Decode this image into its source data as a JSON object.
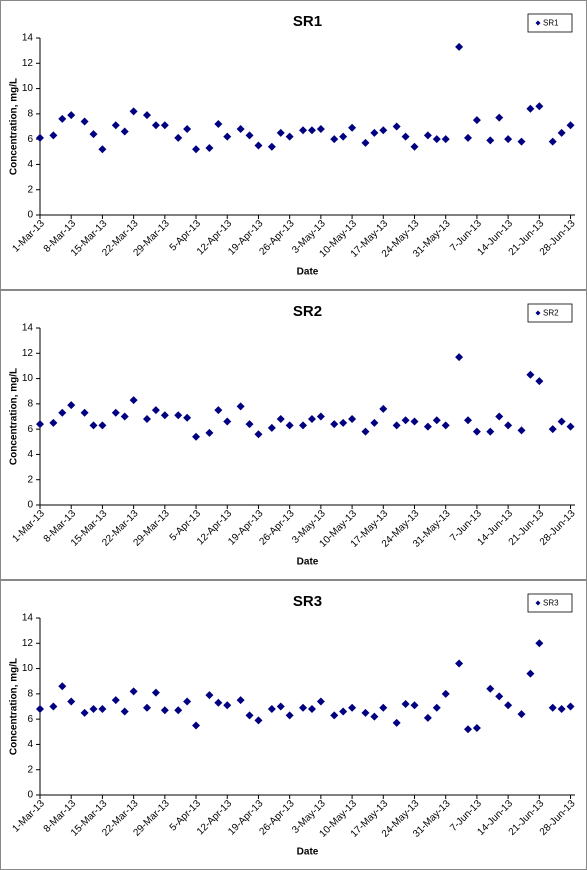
{
  "chart_data": [
    {
      "type": "scatter",
      "title": "SR1",
      "x_label": "Date",
      "y_label": "Concentration, mg/L",
      "legend": "upper right",
      "x": [
        "2013-03-01",
        "2013-03-04",
        "2013-03-06",
        "2013-03-08",
        "2013-03-11",
        "2013-03-13",
        "2013-03-15",
        "2013-03-18",
        "2013-03-20",
        "2013-03-22",
        "2013-03-25",
        "2013-03-27",
        "2013-03-29",
        "2013-04-01",
        "2013-04-03",
        "2013-04-05",
        "2013-04-08",
        "2013-04-10",
        "2013-04-12",
        "2013-04-15",
        "2013-04-17",
        "2013-04-19",
        "2013-04-22",
        "2013-04-24",
        "2013-04-26",
        "2013-04-29",
        "2013-05-01",
        "2013-05-03",
        "2013-05-06",
        "2013-05-08",
        "2013-05-10",
        "2013-05-13",
        "2013-05-15",
        "2013-05-17",
        "2013-05-20",
        "2013-05-22",
        "2013-05-24",
        "2013-05-27",
        "2013-05-29",
        "2013-05-31",
        "2013-06-03",
        "2013-06-05",
        "2013-06-07",
        "2013-06-10",
        "2013-06-12",
        "2013-06-14",
        "2013-06-17",
        "2013-06-19",
        "2013-06-21",
        "2013-06-24",
        "2013-06-26",
        "2013-06-28"
      ],
      "series": [
        {
          "name": "SR1",
          "color": "#000080",
          "values": [
            6.1,
            6.3,
            7.6,
            7.9,
            7.4,
            6.4,
            5.2,
            7.1,
            6.6,
            8.2,
            7.9,
            7.1,
            7.1,
            6.1,
            6.8,
            5.2,
            5.3,
            7.2,
            6.2,
            6.8,
            6.3,
            5.5,
            5.4,
            6.5,
            6.2,
            6.7,
            6.7,
            6.8,
            6.0,
            6.2,
            6.9,
            5.7,
            6.5,
            6.7,
            7.0,
            6.2,
            5.4,
            6.3,
            6.0,
            6.0,
            13.3,
            6.1,
            7.5,
            5.9,
            7.7,
            6.0,
            5.8,
            8.4,
            8.6,
            5.8,
            6.5,
            7.1
          ]
        }
      ],
      "xlim": [
        "2013-03-01",
        "2013-06-29"
      ],
      "xticks": [
        {
          "value": "2013-03-01",
          "label": "1-Mar-13"
        },
        {
          "value": "2013-03-08",
          "label": "8-Mar-13"
        },
        {
          "value": "2013-03-15",
          "label": "15-Mar-13"
        },
        {
          "value": "2013-03-22",
          "label": "22-Mar-13"
        },
        {
          "value": "2013-03-29",
          "label": "29-Mar-13"
        },
        {
          "value": "2013-04-05",
          "label": "5-Apr-13"
        },
        {
          "value": "2013-04-12",
          "label": "12-Apr-13"
        },
        {
          "value": "2013-04-19",
          "label": "19-Apr-13"
        },
        {
          "value": "2013-04-26",
          "label": "26-Apr-13"
        },
        {
          "value": "2013-05-03",
          "label": "3-May-13"
        },
        {
          "value": "2013-05-10",
          "label": "10-May-13"
        },
        {
          "value": "2013-05-17",
          "label": "17-May-13"
        },
        {
          "value": "2013-05-24",
          "label": "24-May-13"
        },
        {
          "value": "2013-05-31",
          "label": "31-May-13"
        },
        {
          "value": "2013-06-07",
          "label": "7-Jun-13"
        },
        {
          "value": "2013-06-14",
          "label": "14-Jun-13"
        },
        {
          "value": "2013-06-21",
          "label": "21-Jun-13"
        },
        {
          "value": "2013-06-28",
          "label": "28-Jun-13"
        }
      ],
      "ylim": [
        0,
        14
      ],
      "yticks": [
        0,
        2,
        4,
        6,
        8,
        10,
        12,
        14
      ]
    },
    {
      "type": "scatter",
      "title": "SR2",
      "x_label": "Date",
      "y_label": "Concentration, mg/L",
      "legend": "upper right",
      "x": [
        "2013-03-01",
        "2013-03-04",
        "2013-03-06",
        "2013-03-08",
        "2013-03-11",
        "2013-03-13",
        "2013-03-15",
        "2013-03-18",
        "2013-03-20",
        "2013-03-22",
        "2013-03-25",
        "2013-03-27",
        "2013-03-29",
        "2013-04-01",
        "2013-04-03",
        "2013-04-05",
        "2013-04-08",
        "2013-04-10",
        "2013-04-12",
        "2013-04-15",
        "2013-04-17",
        "2013-04-19",
        "2013-04-22",
        "2013-04-24",
        "2013-04-26",
        "2013-04-29",
        "2013-05-01",
        "2013-05-03",
        "2013-05-06",
        "2013-05-08",
        "2013-05-10",
        "2013-05-13",
        "2013-05-15",
        "2013-05-17",
        "2013-05-20",
        "2013-05-22",
        "2013-05-24",
        "2013-05-27",
        "2013-05-29",
        "2013-05-31",
        "2013-06-03",
        "2013-06-05",
        "2013-06-07",
        "2013-06-10",
        "2013-06-12",
        "2013-06-14",
        "2013-06-17",
        "2013-06-19",
        "2013-06-21",
        "2013-06-24",
        "2013-06-26",
        "2013-06-28"
      ],
      "series": [
        {
          "name": "SR2",
          "color": "#000080",
          "values": [
            6.4,
            6.5,
            7.3,
            7.9,
            7.3,
            6.3,
            6.3,
            7.3,
            7.0,
            8.3,
            6.8,
            7.5,
            7.1,
            7.1,
            6.9,
            5.4,
            5.7,
            7.5,
            6.6,
            7.8,
            6.4,
            5.6,
            6.1,
            6.8,
            6.3,
            6.3,
            6.8,
            7.0,
            6.4,
            6.5,
            6.8,
            5.8,
            6.5,
            7.6,
            6.3,
            6.7,
            6.6,
            6.2,
            6.7,
            6.3,
            11.7,
            6.7,
            5.8,
            5.8,
            7.0,
            6.3,
            5.9,
            10.3,
            9.8,
            6.0,
            6.6,
            6.2
          ]
        }
      ],
      "xlim": [
        "2013-03-01",
        "2013-06-29"
      ],
      "xticks": [
        {
          "value": "2013-03-01",
          "label": "1-Mar-13"
        },
        {
          "value": "2013-03-08",
          "label": "8-Mar-13"
        },
        {
          "value": "2013-03-15",
          "label": "15-Mar-13"
        },
        {
          "value": "2013-03-22",
          "label": "22-Mar-13"
        },
        {
          "value": "2013-03-29",
          "label": "29-Mar-13"
        },
        {
          "value": "2013-04-05",
          "label": "5-Apr-13"
        },
        {
          "value": "2013-04-12",
          "label": "12-Apr-13"
        },
        {
          "value": "2013-04-19",
          "label": "19-Apr-13"
        },
        {
          "value": "2013-04-26",
          "label": "26-Apr-13"
        },
        {
          "value": "2013-05-03",
          "label": "3-May-13"
        },
        {
          "value": "2013-05-10",
          "label": "10-May-13"
        },
        {
          "value": "2013-05-17",
          "label": "17-May-13"
        },
        {
          "value": "2013-05-24",
          "label": "24-May-13"
        },
        {
          "value": "2013-05-31",
          "label": "31-May-13"
        },
        {
          "value": "2013-06-07",
          "label": "7-Jun-13"
        },
        {
          "value": "2013-06-14",
          "label": "14-Jun-13"
        },
        {
          "value": "2013-06-21",
          "label": "21-Jun-13"
        },
        {
          "value": "2013-06-28",
          "label": "28-Jun-13"
        }
      ],
      "ylim": [
        0,
        14
      ],
      "yticks": [
        0,
        2,
        4,
        6,
        8,
        10,
        12,
        14
      ]
    },
    {
      "type": "scatter",
      "title": "SR3",
      "x_label": "Date",
      "y_label": "Concentration, mg/L",
      "legend": "upper right",
      "x": [
        "2013-03-01",
        "2013-03-04",
        "2013-03-06",
        "2013-03-08",
        "2013-03-11",
        "2013-03-13",
        "2013-03-15",
        "2013-03-18",
        "2013-03-20",
        "2013-03-22",
        "2013-03-25",
        "2013-03-27",
        "2013-03-29",
        "2013-04-01",
        "2013-04-03",
        "2013-04-05",
        "2013-04-08",
        "2013-04-10",
        "2013-04-12",
        "2013-04-15",
        "2013-04-17",
        "2013-04-19",
        "2013-04-22",
        "2013-04-24",
        "2013-04-26",
        "2013-04-29",
        "2013-05-01",
        "2013-05-03",
        "2013-05-06",
        "2013-05-08",
        "2013-05-10",
        "2013-05-13",
        "2013-05-15",
        "2013-05-17",
        "2013-05-20",
        "2013-05-22",
        "2013-05-24",
        "2013-05-27",
        "2013-05-29",
        "2013-05-31",
        "2013-06-03",
        "2013-06-05",
        "2013-06-07",
        "2013-06-10",
        "2013-06-12",
        "2013-06-14",
        "2013-06-17",
        "2013-06-19",
        "2013-06-21",
        "2013-06-24",
        "2013-06-26",
        "2013-06-28"
      ],
      "series": [
        {
          "name": "SR3",
          "color": "#000080",
          "values": [
            6.8,
            7.0,
            8.6,
            7.4,
            6.5,
            6.8,
            6.8,
            7.5,
            6.6,
            8.2,
            6.9,
            8.1,
            6.7,
            6.7,
            7.4,
            5.5,
            7.9,
            7.3,
            7.1,
            7.5,
            6.3,
            5.9,
            6.8,
            7.0,
            6.3,
            6.9,
            6.8,
            7.4,
            6.3,
            6.6,
            6.9,
            6.5,
            6.2,
            6.9,
            5.7,
            7.2,
            7.1,
            6.1,
            6.9,
            8.0,
            10.4,
            5.2,
            5.3,
            8.4,
            7.8,
            7.1,
            6.4,
            9.6,
            12.0,
            6.9,
            6.8,
            7.0
          ]
        }
      ],
      "xlim": [
        "2013-03-01",
        "2013-06-29"
      ],
      "xticks": [
        {
          "value": "2013-03-01",
          "label": "1-Mar-13"
        },
        {
          "value": "2013-03-08",
          "label": "8-Mar-13"
        },
        {
          "value": "2013-03-15",
          "label": "15-Mar-13"
        },
        {
          "value": "2013-03-22",
          "label": "22-Mar-13"
        },
        {
          "value": "2013-03-29",
          "label": "29-Mar-13"
        },
        {
          "value": "2013-04-05",
          "label": "5-Apr-13"
        },
        {
          "value": "2013-04-12",
          "label": "12-Apr-13"
        },
        {
          "value": "2013-04-19",
          "label": "19-Apr-13"
        },
        {
          "value": "2013-04-26",
          "label": "26-Apr-13"
        },
        {
          "value": "2013-05-03",
          "label": "3-May-13"
        },
        {
          "value": "2013-05-10",
          "label": "10-May-13"
        },
        {
          "value": "2013-05-17",
          "label": "17-May-13"
        },
        {
          "value": "2013-05-24",
          "label": "24-May-13"
        },
        {
          "value": "2013-05-31",
          "label": "31-May-13"
        },
        {
          "value": "2013-06-07",
          "label": "7-Jun-13"
        },
        {
          "value": "2013-06-14",
          "label": "14-Jun-13"
        },
        {
          "value": "2013-06-21",
          "label": "21-Jun-13"
        },
        {
          "value": "2013-06-28",
          "label": "28-Jun-13"
        }
      ],
      "ylim": [
        0,
        14
      ],
      "yticks": [
        0,
        2,
        4,
        6,
        8,
        10,
        12,
        14
      ]
    }
  ]
}
